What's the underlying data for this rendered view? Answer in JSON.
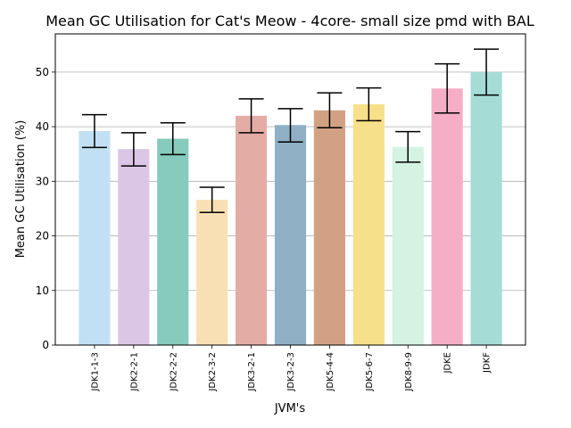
{
  "chart_data": {
    "type": "bar",
    "title": "Mean GC Utilisation for Cat's Meow - 4core- small size pmd with BAL",
    "xlabel": "JVM's",
    "ylabel": "Mean GC Utilisation (%)",
    "ylim": [
      0,
      57
    ],
    "yticks": [
      "0",
      "10",
      "20",
      "30",
      "40",
      "50"
    ],
    "grid": "horizontal",
    "categories": [
      "JDK1-1-3",
      "JDK2-2-1",
      "JDK2-2-2",
      "JDK2-3-2",
      "JDK3-2-1",
      "JDK3-2-3",
      "JDK5-4-4",
      "JDK5-6-7",
      "JDK8-9-9",
      "JDKE",
      "JDKF"
    ],
    "values": [
      39.2,
      35.9,
      37.8,
      26.6,
      42.0,
      40.3,
      43.0,
      44.1,
      36.3,
      47.0,
      50.0
    ],
    "error_low": [
      36.2,
      32.8,
      34.9,
      24.3,
      38.9,
      37.2,
      39.8,
      41.1,
      33.5,
      42.5,
      45.8
    ],
    "error_high": [
      42.2,
      38.9,
      40.7,
      28.9,
      45.1,
      43.3,
      46.2,
      47.1,
      39.1,
      51.5,
      54.2
    ],
    "colors": [
      "#c2e0f3",
      "#dcc6e6",
      "#86cbbb",
      "#f9e0b4",
      "#e3aca5",
      "#8fb0c4",
      "#d2a183",
      "#f6e08a",
      "#d4f3e2",
      "#f6aec7",
      "#a5dcd6"
    ]
  }
}
